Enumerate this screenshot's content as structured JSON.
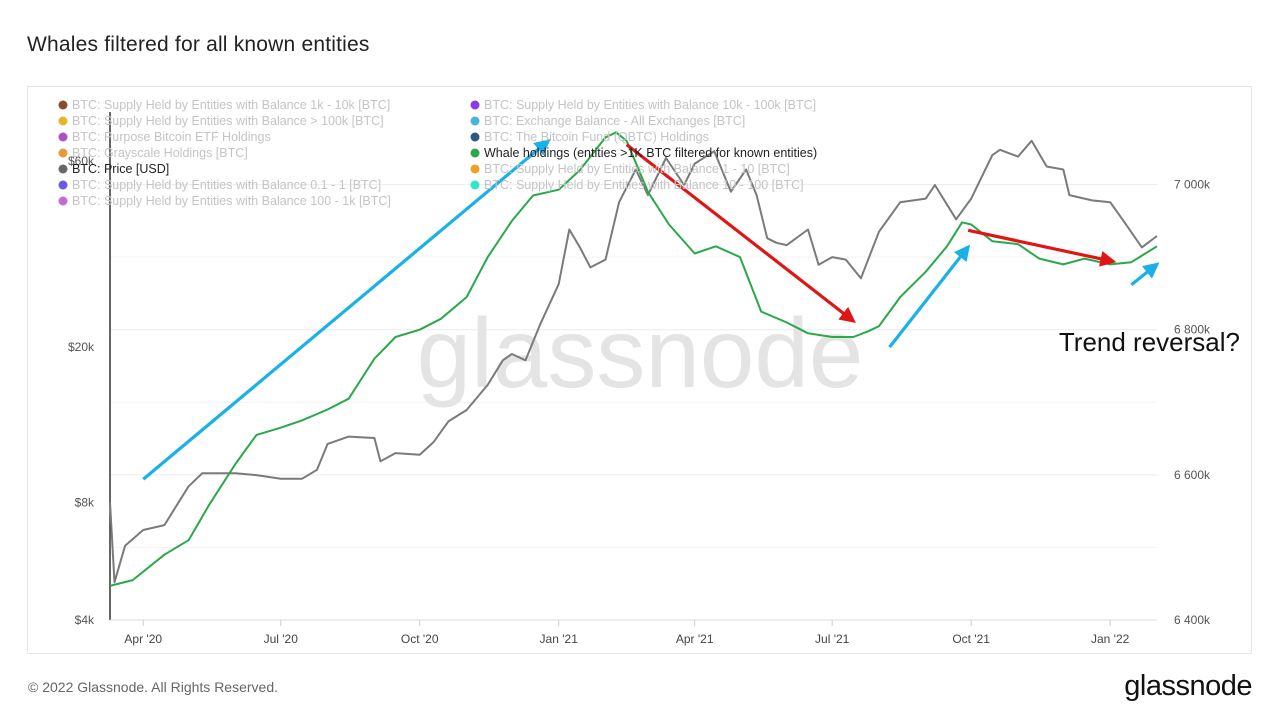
{
  "page": {
    "title": "Whales filtered for all known entities",
    "copyright": "© 2022 Glassnode. All Rights Reserved.",
    "logo": "glassnode"
  },
  "colors": {
    "price_line": "#7a7a7a",
    "whale_line": "#2aa84a",
    "arrow_blue": "#1ab0e8",
    "arrow_red": "#e01616",
    "watermark": "#e4e4e4",
    "legend_inactive": "#c4c4c4",
    "legend_active": "#222222"
  },
  "chart_data": {
    "type": "line",
    "title": "Whales filtered for all known entities",
    "watermark": "glassnode",
    "annotation": "Trend reversal?",
    "x_axis": {
      "type": "date",
      "range": [
        "2020-03-10",
        "2022-02-01"
      ],
      "tick_labels": [
        "Apr '20",
        "Jul '20",
        "Oct '20",
        "Jan '21",
        "Apr '21",
        "Jul '21",
        "Oct '21",
        "Jan '22"
      ]
    },
    "y_axis_left": {
      "scale": "log",
      "unit": "USD",
      "range": [
        4000,
        80000
      ],
      "tick_labels": [
        "$4k",
        "$8k",
        "$20k",
        "$60k"
      ]
    },
    "y_axis_right": {
      "scale": "linear",
      "unit": "BTC",
      "range": [
        6400000,
        7100000
      ],
      "tick_labels": [
        "6 400k",
        "6 600k",
        "6 800k",
        "7 000k"
      ]
    },
    "grid": true,
    "legend": {
      "placement": "top-left",
      "columns": [
        [
          {
            "label": "BTC: Supply Held by Entities with Balance 1k - 10k [BTC]",
            "color": "#8b4b2e",
            "active": false
          },
          {
            "label": "BTC: Supply Held by Entities with Balance > 100k [BTC]",
            "color": "#e9b42c",
            "active": false
          },
          {
            "label": "BTC: Purpose Bitcoin ETF Holdings",
            "color": "#b04fc4",
            "active": false
          },
          {
            "label": "BTC: Grayscale Holdings [BTC]",
            "color": "#e89a3a",
            "active": false
          },
          {
            "label": "BTC: Price [USD]",
            "color": "#666666",
            "active": true
          },
          {
            "label": "BTC: Supply Held by Entities with Balance 0.1 - 1 [BTC]",
            "color": "#6a5ae0",
            "active": false
          },
          {
            "label": "BTC: Supply Held by Entities with Balance 100 - 1k [BTC]",
            "color": "#c46ad8",
            "active": false
          }
        ],
        [
          {
            "label": "BTC: Supply Held by Entities with Balance 10k - 100k [BTC]",
            "color": "#8a3ae8",
            "active": false
          },
          {
            "label": "BTC: Exchange Balance - All Exchanges [BTC]",
            "color": "#4ab4d8",
            "active": false
          },
          {
            "label": "BTC: The Bitcoin Fund (QBTC) Holdings",
            "color": "#2e5a80",
            "active": false
          },
          {
            "label": "Whale holdings (entities >1K BTC filtered for known entities)",
            "color": "#2aa84a",
            "active": true
          },
          {
            "label": "BTC: Supply Held by Entities with Balance 1 - 10 [BTC]",
            "color": "#f0a020",
            "active": false
          },
          {
            "label": "BTC: Supply Held by Entities with Balance 10 - 100 [BTC]",
            "color": "#2ee8c8",
            "active": false
          }
        ]
      ]
    },
    "series": [
      {
        "name": "BTC: Price [USD]",
        "axis": "left",
        "x": [
          "2020-03-10",
          "2020-03-13",
          "2020-03-20",
          "2020-04-01",
          "2020-04-15",
          "2020-05-01",
          "2020-05-10",
          "2020-05-20",
          "2020-06-01",
          "2020-06-15",
          "2020-07-01",
          "2020-07-15",
          "2020-07-25",
          "2020-08-01",
          "2020-08-15",
          "2020-09-01",
          "2020-09-05",
          "2020-09-15",
          "2020-10-01",
          "2020-10-10",
          "2020-10-20",
          "2020-11-01",
          "2020-11-15",
          "2020-11-25",
          "2020-12-01",
          "2020-12-10",
          "2020-12-20",
          "2021-01-01",
          "2021-01-08",
          "2021-01-15",
          "2021-01-22",
          "2021-02-01",
          "2021-02-10",
          "2021-02-21",
          "2021-03-01",
          "2021-03-13",
          "2021-03-25",
          "2021-04-01",
          "2021-04-14",
          "2021-04-25",
          "2021-05-05",
          "2021-05-12",
          "2021-05-19",
          "2021-05-25",
          "2021-06-01",
          "2021-06-15",
          "2021-06-22",
          "2021-07-01",
          "2021-07-10",
          "2021-07-20",
          "2021-08-01",
          "2021-08-15",
          "2021-09-01",
          "2021-09-07",
          "2021-09-21",
          "2021-10-01",
          "2021-10-15",
          "2021-10-20",
          "2021-11-01",
          "2021-11-10",
          "2021-11-20",
          "2021-12-01",
          "2021-12-05",
          "2021-12-20",
          "2022-01-01",
          "2022-01-10",
          "2022-01-22",
          "2022-01-26",
          "2022-02-01"
        ],
        "values": [
          8000,
          5000,
          6200,
          6800,
          7000,
          8800,
          9500,
          9500,
          9500,
          9400,
          9200,
          9200,
          9700,
          11300,
          11800,
          11700,
          10200,
          10700,
          10600,
          11400,
          12900,
          13800,
          16000,
          18500,
          19200,
          18500,
          23000,
          29000,
          40000,
          36000,
          32000,
          33500,
          47000,
          57000,
          49000,
          61000,
          52000,
          59000,
          63500,
          50000,
          57000,
          49000,
          38000,
          37000,
          36500,
          40000,
          32500,
          34000,
          33500,
          30000,
          39500,
          47000,
          48000,
          52000,
          42500,
          48000,
          62000,
          64000,
          61500,
          67500,
          58000,
          57000,
          49000,
          47500,
          47000,
          42000,
          36000,
          37000,
          38500
        ]
      },
      {
        "name": "Whale holdings (entities >1K BTC filtered for known entities)",
        "axis": "right",
        "x": [
          "2020-03-10",
          "2020-03-25",
          "2020-04-15",
          "2020-05-01",
          "2020-05-15",
          "2020-06-01",
          "2020-06-15",
          "2020-07-01",
          "2020-07-15",
          "2020-08-01",
          "2020-08-15",
          "2020-09-01",
          "2020-09-15",
          "2020-10-01",
          "2020-10-15",
          "2020-11-01",
          "2020-11-15",
          "2020-12-01",
          "2020-12-15",
          "2021-01-01",
          "2021-01-15",
          "2021-02-01",
          "2021-02-08",
          "2021-02-15",
          "2021-03-01",
          "2021-03-15",
          "2021-04-01",
          "2021-04-15",
          "2021-05-01",
          "2021-05-15",
          "2021-06-01",
          "2021-06-15",
          "2021-07-01",
          "2021-07-15",
          "2021-07-25",
          "2021-08-01",
          "2021-08-15",
          "2021-09-01",
          "2021-09-15",
          "2021-09-25",
          "2021-10-01",
          "2021-10-15",
          "2021-11-01",
          "2021-11-15",
          "2021-12-01",
          "2021-12-15",
          "2022-01-01",
          "2022-01-15",
          "2022-02-01"
        ],
        "values": [
          6447000,
          6455000,
          6490000,
          6510000,
          6560000,
          6615000,
          6655000,
          6665000,
          6675000,
          6690000,
          6705000,
          6760000,
          6790000,
          6800000,
          6815000,
          6845000,
          6900000,
          6950000,
          6985000,
          6993000,
          7020000,
          7065000,
          7072000,
          7060000,
          6990000,
          6945000,
          6905000,
          6915000,
          6900000,
          6825000,
          6810000,
          6795000,
          6790000,
          6790000,
          6798000,
          6805000,
          6845000,
          6880000,
          6915000,
          6948000,
          6945000,
          6922000,
          6918000,
          6898000,
          6890000,
          6898000,
          6890000,
          6893000,
          6915000
        ]
      }
    ],
    "arrows": [
      {
        "color": "blue",
        "from": [
          "2020-04-01",
          6594000
        ],
        "to": [
          "2020-12-25",
          7060000
        ]
      },
      {
        "color": "red",
        "from": [
          "2021-02-15",
          7055000
        ],
        "to": [
          "2021-07-15",
          6812000
        ]
      },
      {
        "color": "blue",
        "from": [
          "2021-08-08",
          6776000
        ],
        "to": [
          "2021-09-29",
          6914000
        ]
      },
      {
        "color": "red",
        "from": [
          "2021-09-29",
          6937000
        ],
        "to": [
          "2022-01-03",
          6894000
        ]
      },
      {
        "color": "blue",
        "from": [
          "2022-01-15",
          6862000
        ],
        "to": [
          "2022-02-01",
          6890000
        ]
      }
    ]
  }
}
